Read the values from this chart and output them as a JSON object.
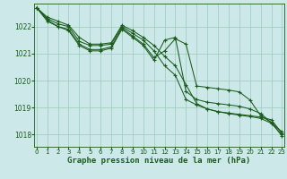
{
  "background_color": "#cce8e8",
  "grid_color": "#99ccbb",
  "line_color": "#1a5c1a",
  "title": "Graphe pression niveau de la mer (hPa)",
  "ylim": [
    1017.55,
    1022.85
  ],
  "xlim": [
    -0.2,
    23.2
  ],
  "yticks": [
    1018,
    1019,
    1020,
    1021,
    1022
  ],
  "xticks": [
    0,
    1,
    2,
    3,
    4,
    5,
    6,
    7,
    8,
    9,
    10,
    11,
    12,
    13,
    14,
    15,
    16,
    17,
    18,
    19,
    20,
    21,
    22,
    23
  ],
  "series": [
    [
      1022.7,
      1022.35,
      1022.2,
      1022.05,
      1021.6,
      1021.35,
      1021.35,
      1021.4,
      1022.05,
      1021.85,
      1021.6,
      1021.3,
      1020.9,
      1020.55,
      1019.85,
      1019.15,
      1018.95,
      1018.85,
      1018.8,
      1018.75,
      1018.7,
      1018.65,
      1018.55,
      1018.05
    ],
    [
      1022.7,
      1022.3,
      1022.1,
      1022.0,
      1021.45,
      1021.3,
      1021.3,
      1021.35,
      1022.0,
      1021.75,
      1021.5,
      1021.1,
      1020.55,
      1020.2,
      1019.3,
      1019.1,
      1018.95,
      1018.85,
      1018.78,
      1018.72,
      1018.67,
      1018.6,
      1018.42,
      1018.0
    ],
    [
      1022.7,
      1022.25,
      1022.0,
      1021.9,
      1021.35,
      1021.15,
      1021.15,
      1021.25,
      1021.95,
      1021.65,
      1021.35,
      1020.85,
      1021.1,
      1021.55,
      1021.35,
      1019.8,
      1019.75,
      1019.7,
      1019.65,
      1019.58,
      1019.28,
      1018.7,
      1018.45,
      1018.1
    ],
    [
      1022.7,
      1022.2,
      1022.0,
      1021.85,
      1021.3,
      1021.1,
      1021.1,
      1021.2,
      1021.9,
      1021.6,
      1021.3,
      1020.75,
      1021.5,
      1021.6,
      1019.6,
      1019.3,
      1019.2,
      1019.15,
      1019.1,
      1019.05,
      1018.95,
      1018.78,
      1018.45,
      1017.95
    ]
  ]
}
